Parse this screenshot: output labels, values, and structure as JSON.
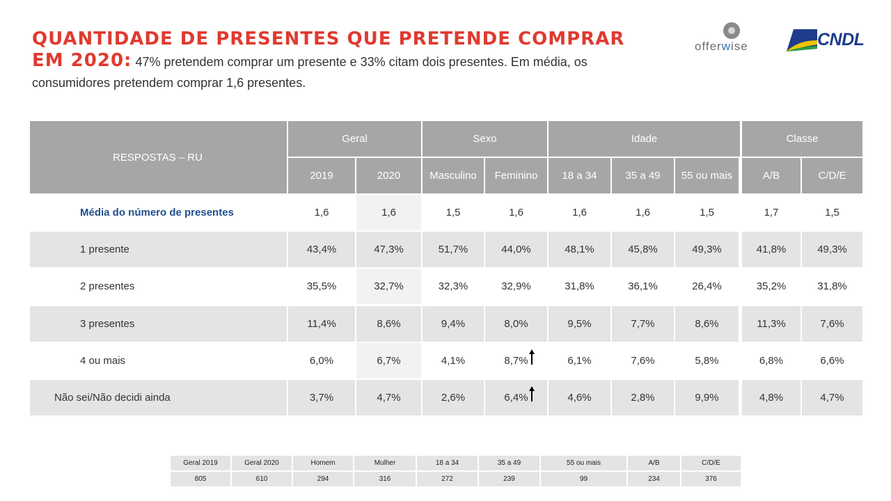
{
  "title": {
    "line1": "QUANTIDADE DE PRESENTES QUE PRETENDE COMPRAR",
    "line2_emph": "EM 2020:",
    "line2_text": " 47% pretendem comprar um presente e 33% citam dois presentes. Em média, os",
    "line3_text": "consumidores pretendem comprar 1,6 presentes."
  },
  "logos": {
    "offerwise": {
      "pre": "offer",
      "accent": "w",
      "post": "ise"
    },
    "cndl": "CNDL"
  },
  "table": {
    "corner_label": "RESPOSTAS – RU",
    "groups": [
      "Geral",
      "Sexo",
      "Idade",
      "Classe"
    ],
    "columns": [
      "2019",
      "2020",
      "Masculino",
      "Feminino",
      "18 a 34",
      "35 a 49",
      "55 ou mais",
      "A/B",
      "C/D/E"
    ],
    "rows": [
      {
        "label": "Média do número de presentes",
        "values": [
          "1,6",
          "1,6",
          "1,5",
          "1,6",
          "1,6",
          "1,6",
          "1,5",
          "1,7",
          "1,5"
        ]
      },
      {
        "label": "1 presente",
        "values": [
          "43,4%",
          "47,3%",
          "51,7%",
          "44,0%",
          "48,1%",
          "45,8%",
          "49,3%",
          "41,8%",
          "49,3%"
        ]
      },
      {
        "label": "2 presentes",
        "values": [
          "35,5%",
          "32,7%",
          "32,3%",
          "32,9%",
          "31,8%",
          "36,1%",
          "26,4%",
          "35,2%",
          "31,8%"
        ]
      },
      {
        "label": "3 presentes",
        "values": [
          "11,4%",
          "8,6%",
          "9,4%",
          "8,0%",
          "9,5%",
          "7,7%",
          "8,6%",
          "11,3%",
          "7,6%"
        ]
      },
      {
        "label": "4 ou mais",
        "values": [
          "6,0%",
          "6,7%",
          "4,1%",
          "8,7%",
          "6,1%",
          "7,6%",
          "5,8%",
          "6,8%",
          "6,6%"
        ]
      },
      {
        "label": "Não sei/Não decidi ainda",
        "values": [
          "3,7%",
          "4,7%",
          "2,6%",
          "6,4%",
          "4,6%",
          "2,8%",
          "9,9%",
          "4,8%",
          "4,7%"
        ]
      }
    ]
  },
  "sample": {
    "labels": [
      "Geral 2019",
      "Geral 2020",
      "Homem",
      "Mulher",
      "18 a 34",
      "35 a 49",
      "55 ou mais",
      "A/B",
      "C/D/E"
    ],
    "values": [
      "805",
      "610",
      "294",
      "316",
      "272",
      "239",
      "99",
      "234",
      "376"
    ]
  },
  "colors": {
    "title_red": "#e03a30",
    "header_grey": "#a6a6a6",
    "row_grey": "#e4e4e4",
    "highlight_col": "#f2f2f2",
    "avg_label_blue": "#1f4e8c"
  }
}
